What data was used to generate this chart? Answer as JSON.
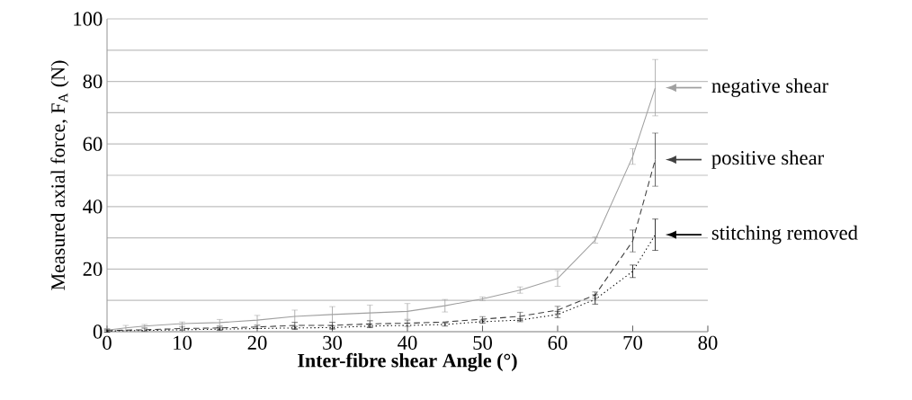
{
  "chart_data": {
    "type": "line",
    "xlabel": "Inter-fibre shear Angle (°)",
    "ylabel": "Measured axial force, F$_{A}$ (N)",
    "x": [
      0,
      2.5,
      5,
      10,
      15,
      20,
      25,
      30,
      35,
      40,
      45,
      50,
      55,
      60,
      65,
      70,
      73
    ],
    "series": [
      {
        "name": "negative shear",
        "color": "#a0a0a0",
        "line_style": "solid",
        "values": [
          0.5,
          1.2,
          1.8,
          2.6,
          2.9,
          3.7,
          4.9,
          5.5,
          6,
          6.5,
          8.3,
          10.5,
          13.3,
          17,
          29.3,
          56,
          78
        ],
        "errors": [
          0.5,
          0.8,
          0.5,
          0.5,
          1,
          1.5,
          2,
          2.5,
          2.5,
          2.5,
          2,
          0.6,
          1,
          2.5,
          1,
          2.5,
          9
        ]
      },
      {
        "name": "positive shear",
        "color": "#404040",
        "line_style": "dashed",
        "values": [
          0.3,
          0.5,
          0.6,
          1,
          1.2,
          1.5,
          2,
          2,
          2.5,
          2.7,
          3.1,
          4,
          4.9,
          6.9,
          11.7,
          29,
          55
        ],
        "errors": [
          0.5,
          null,
          0.5,
          0.5,
          0.5,
          0.5,
          1,
          1,
          1,
          1,
          null,
          0.8,
          1.3,
          1.2,
          1,
          3.5,
          8.5
        ]
      },
      {
        "name": "stitching removed",
        "color": "#000000",
        "line_style": "dotted",
        "values": [
          0.2,
          0.3,
          0.4,
          0.6,
          0.8,
          1,
          1.2,
          1.3,
          1.8,
          2,
          2.3,
          3.2,
          3.7,
          5.5,
          10.3,
          19.3,
          31
        ],
        "errors": [
          0.3,
          null,
          null,
          null,
          0.4,
          null,
          0.5,
          0.5,
          0.5,
          null,
          0.5,
          0.5,
          0.5,
          1,
          1.5,
          2,
          5
        ]
      }
    ],
    "xlim": [
      0,
      80
    ],
    "xticks": [
      0,
      10,
      20,
      30,
      40,
      50,
      60,
      70,
      80
    ],
    "ylim": [
      0,
      100
    ],
    "yticks": [
      0,
      {
        "value": 10,
        "label": null
      },
      20,
      {
        "value": 30,
        "label": null
      },
      40,
      {
        "value": 50,
        "label": null
      },
      60,
      {
        "value": 70,
        "label": null
      },
      80,
      {
        "value": 90,
        "label": null
      },
      100
    ],
    "grid": "y",
    "legend": "right",
    "marker": "none"
  }
}
